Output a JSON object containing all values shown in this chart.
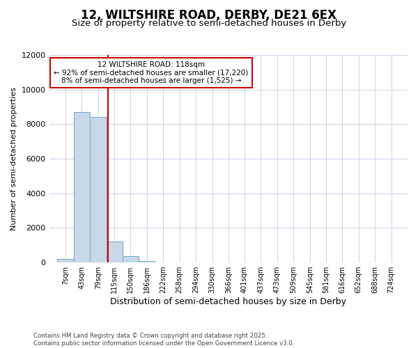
{
  "title": "12, WILTSHIRE ROAD, DERBY, DE21 6EX",
  "subtitle": "Size of property relative to semi-detached houses in Derby",
  "xlabel": "Distribution of semi-detached houses by size in Derby",
  "ylabel": "Number of semi-detached properties",
  "footer1": "Contains HM Land Registry data © Crown copyright and database right 2025.",
  "footer2": "Contains public sector information licensed under the Open Government Licence v3.0.",
  "bin_labels": [
    "7sqm",
    "43sqm",
    "79sqm",
    "115sqm",
    "150sqm",
    "186sqm",
    "222sqm",
    "258sqm",
    "294sqm",
    "330sqm",
    "366sqm",
    "401sqm",
    "437sqm",
    "473sqm",
    "509sqm",
    "545sqm",
    "581sqm",
    "616sqm",
    "652sqm",
    "688sqm",
    "724sqm"
  ],
  "bin_edges": [
    7,
    43,
    79,
    115,
    150,
    186,
    222,
    258,
    294,
    330,
    366,
    401,
    437,
    473,
    509,
    545,
    581,
    616,
    652,
    688,
    724
  ],
  "bin_width": 36,
  "bar_values": [
    200,
    8700,
    8400,
    1200,
    350,
    100,
    0,
    0,
    0,
    0,
    0,
    0,
    0,
    0,
    0,
    0,
    0,
    0,
    0,
    0
  ],
  "bar_color": "#c8d8e8",
  "bar_edge_color": "#7aaec8",
  "property_value": 118,
  "vline_color": "#cc0000",
  "annotation_line1": "12 WILTSHIRE ROAD: 118sqm",
  "annotation_line2": "← 92% of semi-detached houses are smaller (17,220)",
  "annotation_line3": "8% of semi-detached houses are larger (1,525) →",
  "annotation_box_edgecolor": "#cc0000",
  "ylim": [
    0,
    12000
  ],
  "yticks": [
    0,
    2000,
    4000,
    6000,
    8000,
    10000,
    12000
  ],
  "grid_color": "#c8d4e8",
  "bg_color": "#ffffff",
  "title_fontsize": 12,
  "subtitle_fontsize": 9.5
}
